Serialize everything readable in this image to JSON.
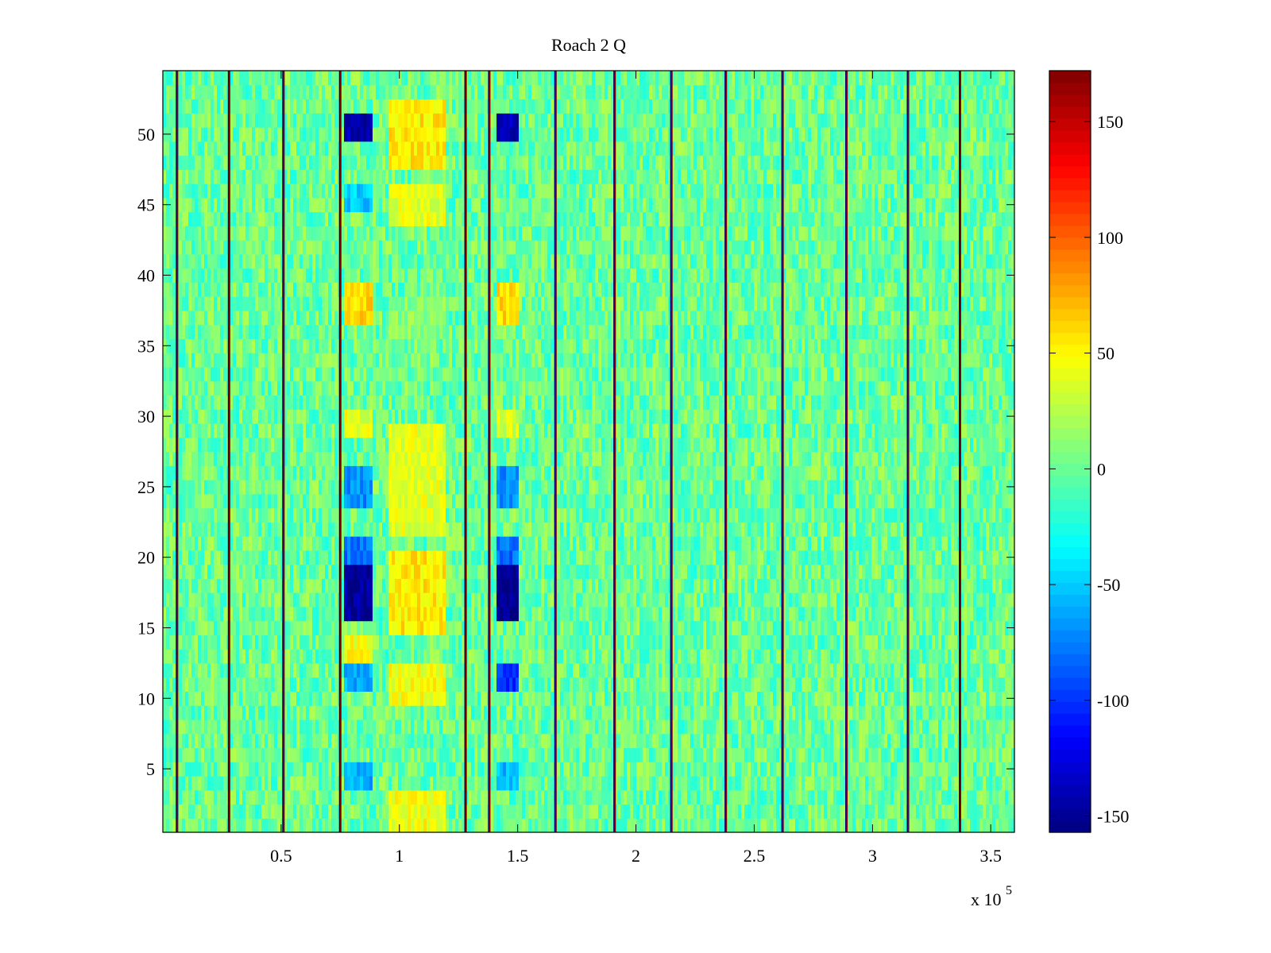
{
  "chart_data": {
    "type": "heatmap",
    "title": "Roach 2 Q",
    "xlabel": "",
    "ylabel": "",
    "x_exponent_label": "x 10",
    "x_exponent_sup": "5",
    "xlim": [
      0,
      3.6
    ],
    "ylim": [
      0.5,
      54.5
    ],
    "x_ticks": [
      0.5,
      1,
      1.5,
      2,
      2.5,
      3,
      3.5
    ],
    "x_tick_labels": [
      "0.5",
      "1",
      "1.5",
      "2",
      "2.5",
      "3",
      "3.5"
    ],
    "y_ticks": [
      5,
      10,
      15,
      20,
      25,
      30,
      35,
      40,
      45,
      50
    ],
    "y_tick_labels": [
      "5",
      "10",
      "15",
      "20",
      "25",
      "30",
      "35",
      "40",
      "45",
      "50"
    ],
    "rows": 54,
    "colormap": "jet",
    "clim": [
      -157,
      172
    ],
    "colorbar": {
      "ticks": [
        -150,
        -100,
        -50,
        0,
        50,
        100,
        150
      ],
      "tick_labels": [
        "-150",
        "-100",
        "-50",
        "0",
        "50",
        "100",
        "150"
      ]
    },
    "background_value_range": [
      -25,
      25
    ],
    "vertical_streaks_x": [
      0.06,
      0.28,
      0.51,
      0.75,
      1.28,
      1.38,
      1.66,
      1.91,
      2.15,
      2.38,
      2.62,
      2.89,
      3.15,
      3.37
    ],
    "vertical_streak_value": 170,
    "blue_column_bands": [
      {
        "x_range": [
          0.77,
          0.88
        ],
        "rows": [
          [
            11,
            12,
            -60
          ],
          [
            16,
            19,
            -150
          ],
          [
            20,
            21,
            -80
          ],
          [
            50,
            51,
            -140
          ],
          [
            24,
            26,
            -70
          ],
          [
            4,
            5,
            -60
          ],
          [
            45,
            46,
            -50
          ]
        ]
      },
      {
        "x_range": [
          1.41,
          1.51
        ],
        "rows": [
          [
            11,
            12,
            -100
          ],
          [
            16,
            19,
            -155
          ],
          [
            20,
            21,
            -80
          ],
          [
            50,
            51,
            -140
          ],
          [
            24,
            26,
            -70
          ],
          [
            4,
            5,
            -55
          ]
        ]
      }
    ],
    "warm_column_bands": [
      {
        "x_range": [
          0.96,
          1.2
        ],
        "rows": [
          [
            1,
            3,
            45
          ],
          [
            10,
            12,
            45
          ],
          [
            15,
            20,
            55
          ],
          [
            22,
            29,
            40
          ],
          [
            36,
            38,
            10
          ],
          [
            44,
            46,
            40
          ],
          [
            48,
            52,
            55
          ]
        ]
      },
      {
        "x_range": [
          0.77,
          0.88
        ],
        "rows": [
          [
            37,
            39,
            60
          ],
          [
            29,
            30,
            40
          ],
          [
            13,
            14,
            45
          ]
        ]
      },
      {
        "x_range": [
          1.41,
          1.51
        ],
        "rows": [
          [
            37,
            39,
            60
          ],
          [
            29,
            30,
            35
          ]
        ]
      }
    ],
    "grid": false
  }
}
